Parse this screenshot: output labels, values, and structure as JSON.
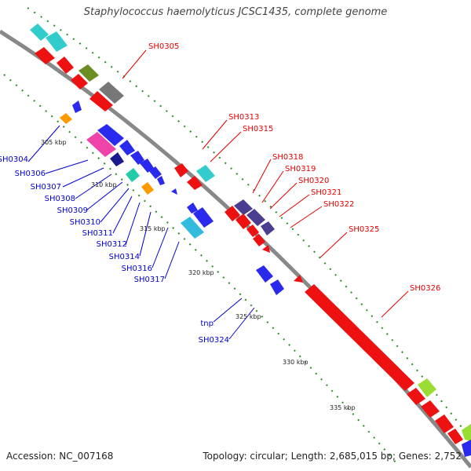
{
  "title": "Staphylococcus haemolyticus JCSC1435, complete genome",
  "footer": {
    "accession": "Accession: NC_007168",
    "topology": "Topology: circular; Length: 2,685,015 bp; Genes: 2,752"
  },
  "colors": {
    "forward_label": "#e00000",
    "reverse_label": "#0000cc",
    "backbone": "#888888",
    "tick_dots": "#2a8a2a"
  },
  "ticks": [
    "305 kbp",
    "310 kbp",
    "315 kbp",
    "320 kbp",
    "325 kbp",
    "330 kbp",
    "335 kbp"
  ],
  "forward_labels": [
    "SH0305",
    "SH0313",
    "SH0315",
    "SH0318",
    "SH0319",
    "SH0320",
    "SH0321",
    "SH0322",
    "SH0325",
    "SH0326"
  ],
  "reverse_labels": [
    "SH0304",
    "SH0306",
    "SH0307",
    "SH0308",
    "SH0309",
    "SH0310",
    "SH0311",
    "SH0312",
    "SH0314",
    "SH0316",
    "SH0317",
    "tnp",
    "SH0324"
  ]
}
